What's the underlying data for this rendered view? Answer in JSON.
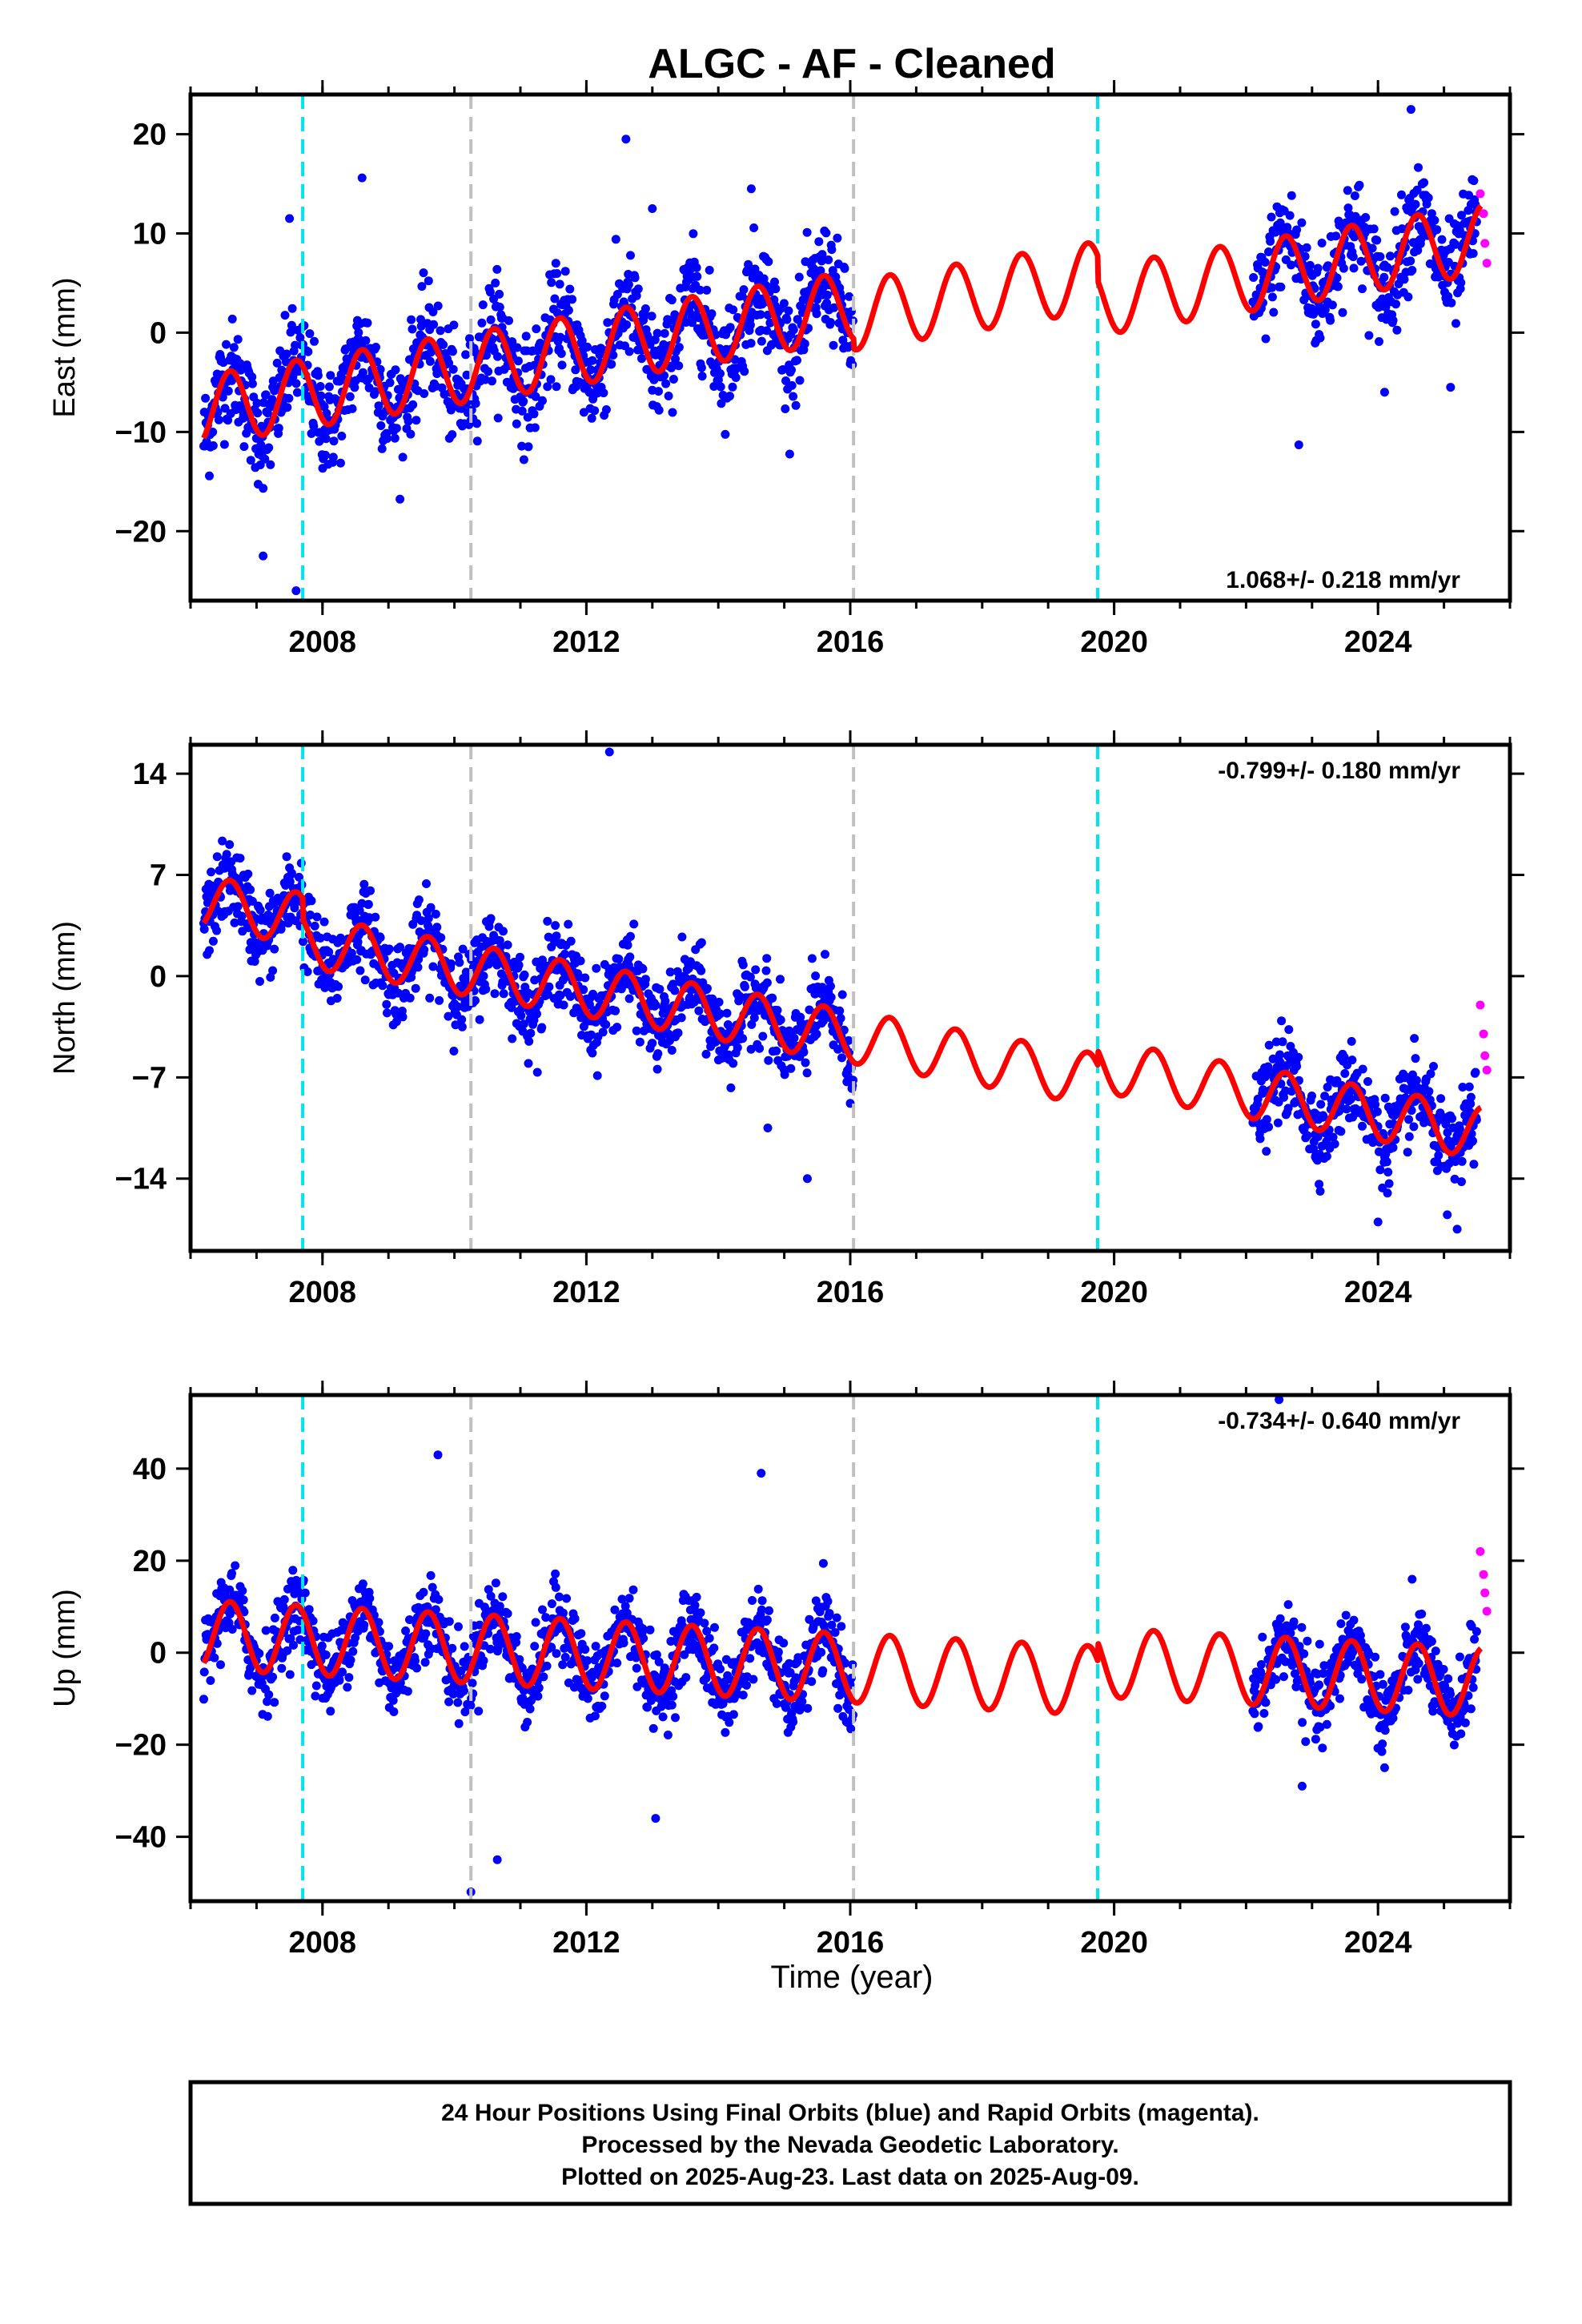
{
  "title": "ALGC  - AF - Cleaned",
  "xlabel": "Time (year)",
  "colors": {
    "final_orbits": "#0000ff",
    "rapid_orbits": "#ff00ff",
    "model": "#ff0000",
    "equipment_change": "#00e5ee",
    "other_event": "#c0c0c0",
    "frame": "#000000"
  },
  "footer": {
    "line1": "24 Hour Positions Using Final Orbits (blue) and Rapid Orbits (magenta).",
    "line2": "Processed by the Nevada Geodetic Laboratory.",
    "line3": "Plotted on 2025-Aug-23. Last data on 2025-Aug-09."
  },
  "chart_data": [
    {
      "type": "scatter",
      "panel": "east",
      "ylabel": "East (mm)",
      "rate_text": "1.068+/- 0.218 mm/yr",
      "rate_position": "bottom-right",
      "xlim": [
        2006.0,
        2026.0
      ],
      "ylim": [
        -27,
        24
      ],
      "xticks": [
        2008,
        2012,
        2016,
        2020,
        2024
      ],
      "yticks": [
        -20,
        -10,
        0,
        10,
        20
      ],
      "vlines_cyan": [
        2007.7,
        2019.75
      ],
      "vlines_gray": [
        2010.25,
        2016.05
      ],
      "data_gap": [
        2016.05,
        2022.1
      ],
      "model": {
        "offset_2006": -8.0,
        "rate": 1.068,
        "annual_amplitude": 3.5,
        "jumps": [
          {
            "t": 2016.05,
            "dy": -1.0
          },
          {
            "t": 2019.75,
            "dy": -2.5
          }
        ]
      },
      "scatter_sigma": 2.6,
      "outliers": [
        [
          2007.5,
          11.5
        ],
        [
          2008.6,
          15.6
        ],
        [
          2012.6,
          19.5
        ],
        [
          2013.0,
          12.5
        ],
        [
          2014.5,
          14.5
        ],
        [
          2007.1,
          -22.5
        ],
        [
          2007.6,
          -26
        ],
        [
          2022.8,
          -11.3
        ],
        [
          2024.1,
          -6
        ],
        [
          2025.1,
          -5.5
        ],
        [
          2024.5,
          22.5
        ]
      ],
      "rapid_points": [
        [
          2025.55,
          14
        ],
        [
          2025.6,
          12
        ],
        [
          2025.62,
          9
        ],
        [
          2025.65,
          7
        ]
      ]
    },
    {
      "type": "scatter",
      "panel": "north",
      "ylabel": "North (mm)",
      "rate_text": "-0.799+/- 0.180 mm/yr",
      "rate_position": "top-right",
      "xlim": [
        2006.0,
        2026.0
      ],
      "ylim": [
        -19,
        16
      ],
      "xticks": [
        2008,
        2012,
        2016,
        2020,
        2024
      ],
      "yticks": [
        -14,
        -7,
        0,
        7,
        14
      ],
      "vlines_cyan": [
        2007.7,
        2019.75
      ],
      "vlines_gray": [
        2010.25,
        2016.05
      ],
      "data_gap": [
        2016.05,
        2022.1
      ],
      "model": {
        "offset_2006": 5.3,
        "rate": -0.799,
        "annual_amplitude": 1.8,
        "jumps": [
          {
            "t": 2007.7,
            "dy": -1.5
          },
          {
            "t": 2019.75,
            "dy": 1.0
          }
        ]
      },
      "scatter_sigma": 1.4,
      "outliers": [
        [
          2012.35,
          15.5
        ],
        [
          2015.35,
          -14
        ],
        [
          2023.05,
          -12.5
        ],
        [
          2024.0,
          -17
        ],
        [
          2025.05,
          -16.5
        ],
        [
          2025.2,
          -17.5
        ],
        [
          2014.75,
          -10.5
        ]
      ],
      "rapid_points": [
        [
          2025.55,
          -2
        ],
        [
          2025.6,
          -4
        ],
        [
          2025.62,
          -5.5
        ],
        [
          2025.65,
          -6.5
        ]
      ]
    },
    {
      "type": "scatter",
      "panel": "up",
      "ylabel": "Up (mm)",
      "rate_text": "-0.734+/- 0.640 mm/yr",
      "rate_position": "top-right",
      "xlim": [
        2006.0,
        2026.0
      ],
      "ylim": [
        -54,
        56
      ],
      "xticks": [
        2008,
        2012,
        2016,
        2020,
        2024
      ],
      "yticks": [
        -40,
        -20,
        0,
        20,
        40
      ],
      "vlines_cyan": [
        2007.7,
        2019.75
      ],
      "vlines_gray": [
        2010.25,
        2016.05
      ],
      "data_gap": [
        2016.05,
        2022.1
      ],
      "model": {
        "offset_2006": 4.0,
        "rate": -0.734,
        "annual_amplitude": 7.5,
        "jumps": [
          {
            "t": 2019.75,
            "dy": 4.0
          }
        ]
      },
      "scatter_sigma": 4.2,
      "outliers": [
        [
          2009.75,
          43
        ],
        [
          2014.65,
          39
        ],
        [
          2010.25,
          -52
        ],
        [
          2010.65,
          -45
        ],
        [
          2013.05,
          -36
        ],
        [
          2022.5,
          55
        ],
        [
          2022.85,
          -29
        ],
        [
          2024.1,
          -25
        ]
      ],
      "rapid_points": [
        [
          2025.55,
          22
        ],
        [
          2025.6,
          17
        ],
        [
          2025.62,
          13
        ],
        [
          2025.65,
          9
        ]
      ]
    }
  ]
}
